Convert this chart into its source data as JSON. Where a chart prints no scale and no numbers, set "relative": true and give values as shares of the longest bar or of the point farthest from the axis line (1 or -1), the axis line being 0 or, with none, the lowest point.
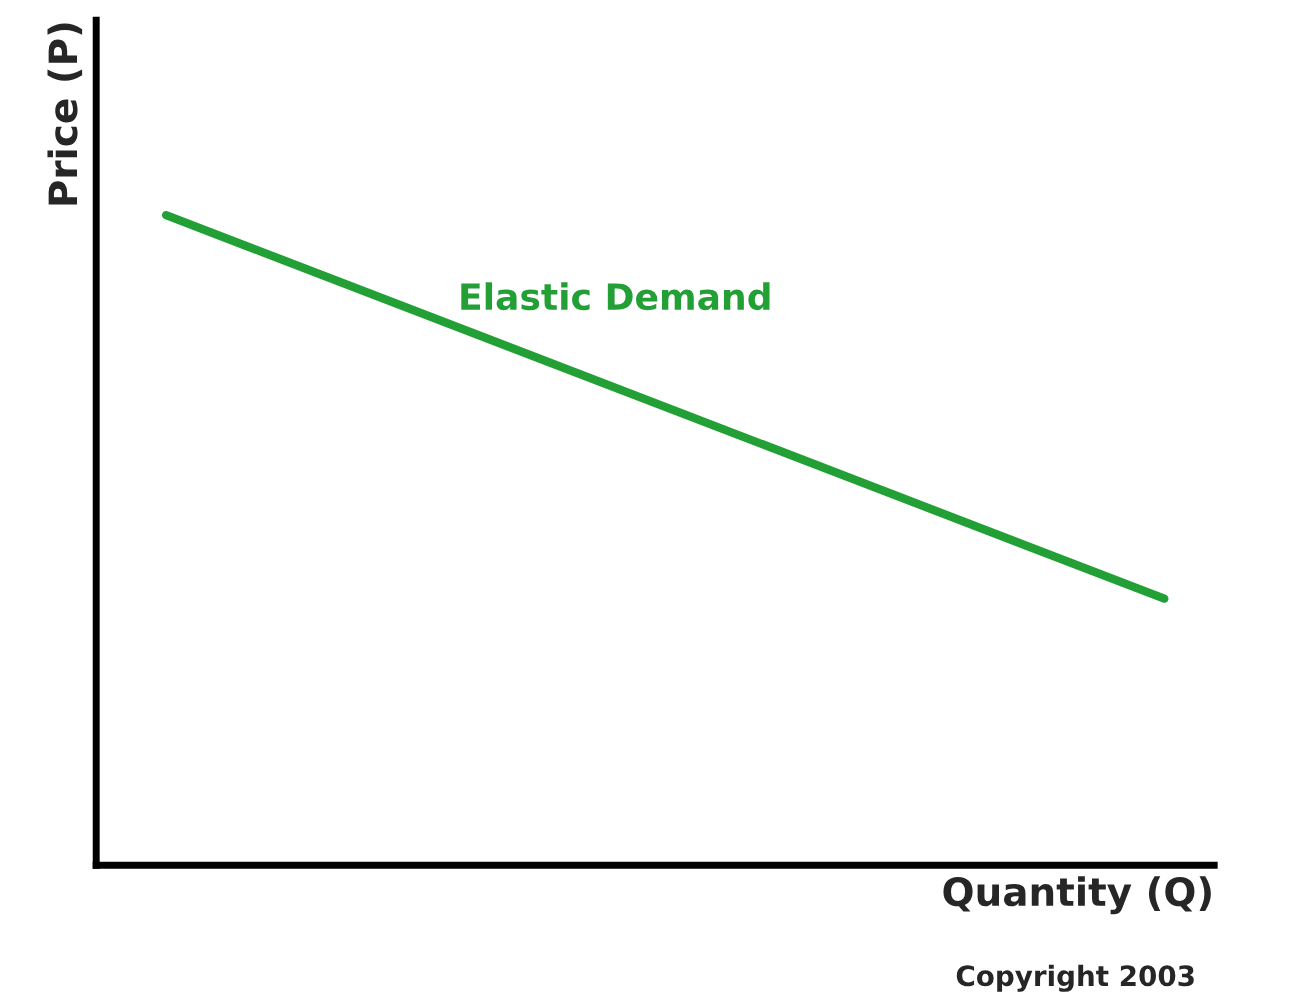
{
  "chart_data": {
    "type": "line",
    "relative": true,
    "xlabel": "Quantity (Q)",
    "ylabel": "Price (P)",
    "categories": [
      null,
      null
    ],
    "series": [
      {
        "name": "Elastic Demand",
        "color": "#23a035",
        "values": [
          1,
          0.41
        ]
      }
    ],
    "annotations": [
      "Copyright 2003"
    ]
  }
}
